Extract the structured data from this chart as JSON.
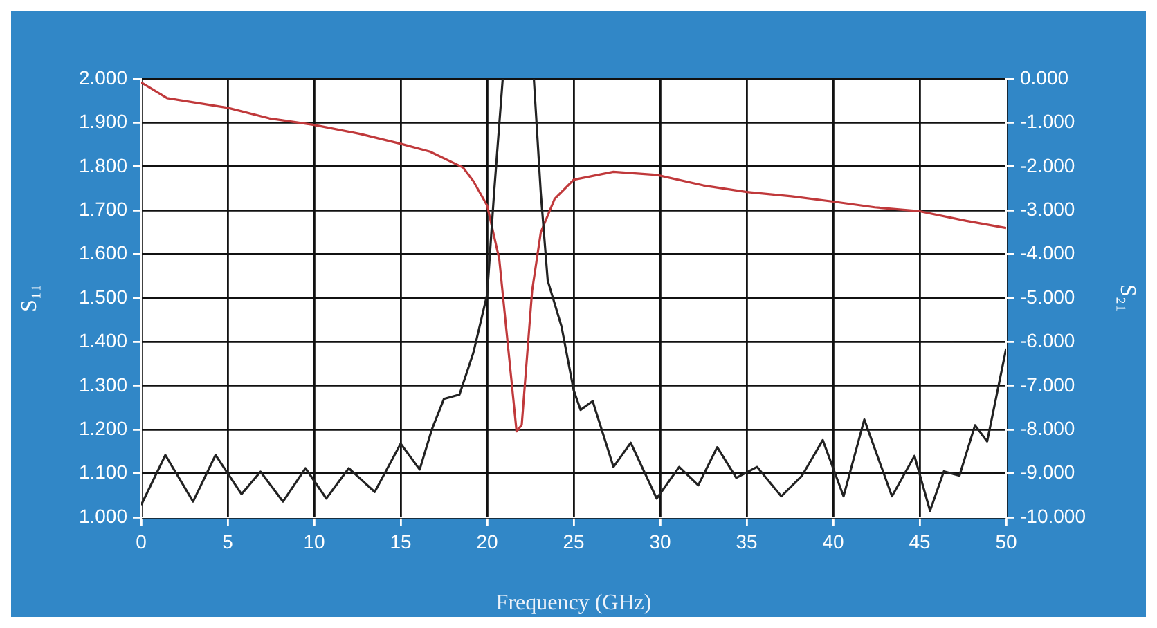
{
  "chart_data": {
    "type": "line",
    "xlabel": "Frequency (GHz)",
    "ylabel": "S₁₁",
    "y2label": "S₂₁",
    "xlim": [
      0,
      50
    ],
    "xticks": [
      0,
      5,
      10,
      15,
      20,
      25,
      30,
      35,
      40,
      45,
      50
    ],
    "ylim": [
      1,
      2
    ],
    "yticks": [
      {
        "value": 1,
        "label": "1.000"
      },
      {
        "value": 1.1,
        "label": "1.100"
      },
      {
        "value": 1.2,
        "label": "1.200"
      },
      {
        "value": 1.3,
        "label": "1.300"
      },
      {
        "value": 1.4,
        "label": "1.400"
      },
      {
        "value": 1.5,
        "label": "1.500"
      },
      {
        "value": 1.6,
        "label": "1.600"
      },
      {
        "value": 1.7,
        "label": "1.700"
      },
      {
        "value": 1.8,
        "label": "1.800"
      },
      {
        "value": 1.9,
        "label": "1.900"
      },
      {
        "value": 2,
        "label": "2.000"
      }
    ],
    "y2lim": [
      -10,
      0
    ],
    "y2ticks": [
      {
        "value": -10,
        "label": "-10.000"
      },
      {
        "value": -9,
        "label": "-9.000"
      },
      {
        "value": -8,
        "label": "-8.000"
      },
      {
        "value": -7,
        "label": "-7.000"
      },
      {
        "value": -6,
        "label": "-6.000"
      },
      {
        "value": -5,
        "label": "-5.000"
      },
      {
        "value": -4,
        "label": "-4.000"
      },
      {
        "value": -3,
        "label": "-3.000"
      },
      {
        "value": -2,
        "label": "-2.000"
      },
      {
        "value": -1,
        "label": "-1.000"
      },
      {
        "value": 0,
        "label": "0.000"
      }
    ],
    "grid": true,
    "legend": false,
    "marker": "none",
    "line_style": "solid",
    "series": [
      {
        "color": "#222222",
        "x": [
          0,
          1.4,
          3.0,
          4.3,
          5.8,
          6.9,
          8.2,
          9.5,
          10.7,
          12.0,
          13.5,
          15.0,
          16.1,
          16.8,
          17.5,
          18.4,
          19.2,
          20.0,
          20.4,
          20.9,
          21.8,
          22.7,
          23.1,
          23.5,
          24.3,
          25.0,
          25.4,
          26.1,
          27.3,
          28.3,
          29.8,
          31.1,
          32.2,
          33.3,
          34.4,
          35.6,
          37.0,
          38.2,
          39.4,
          40.6,
          41.8,
          43.4,
          44.7,
          45.6,
          46.4,
          47.3,
          48.2,
          48.9,
          50
        ],
        "values": [
          1.028,
          1.142,
          1.036,
          1.142,
          1.053,
          1.104,
          1.036,
          1.112,
          1.043,
          1.112,
          1.058,
          1.168,
          1.109,
          1.2,
          1.27,
          1.28,
          1.375,
          1.508,
          1.74,
          2.0,
          null,
          2.0,
          1.74,
          1.54,
          1.435,
          1.29,
          1.245,
          1.265,
          1.115,
          1.17,
          1.043,
          1.115,
          1.073,
          1.16,
          1.09,
          1.115,
          1.048,
          1.095,
          1.176,
          1.048,
          1.223,
          1.048,
          1.14,
          1.015,
          1.105,
          1.095,
          1.21,
          1.173,
          1.385
        ]
      },
      {
        "color": "#c0393b",
        "axis": "y2",
        "x": [
          0,
          1.5,
          5,
          7.4,
          10,
          12.7,
          15,
          16.7,
          18.6,
          19.2,
          20,
          20.7,
          21.7,
          22.0,
          22.6,
          23.1,
          23.9,
          25,
          27.3,
          29.8,
          32.5,
          35,
          37.6,
          40,
          42.4,
          45,
          47.7,
          50
        ],
        "values": [
          -0.08,
          -0.44,
          -0.66,
          -0.9,
          -1.05,
          -1.26,
          -1.48,
          -1.66,
          -2.02,
          -2.33,
          -2.89,
          -4.11,
          -8.04,
          -7.89,
          -4.83,
          -3.5,
          -2.74,
          -2.3,
          -2.12,
          -2.19,
          -2.43,
          -2.58,
          -2.68,
          -2.8,
          -2.93,
          -3.02,
          -3.24,
          -3.4
        ]
      }
    ]
  }
}
